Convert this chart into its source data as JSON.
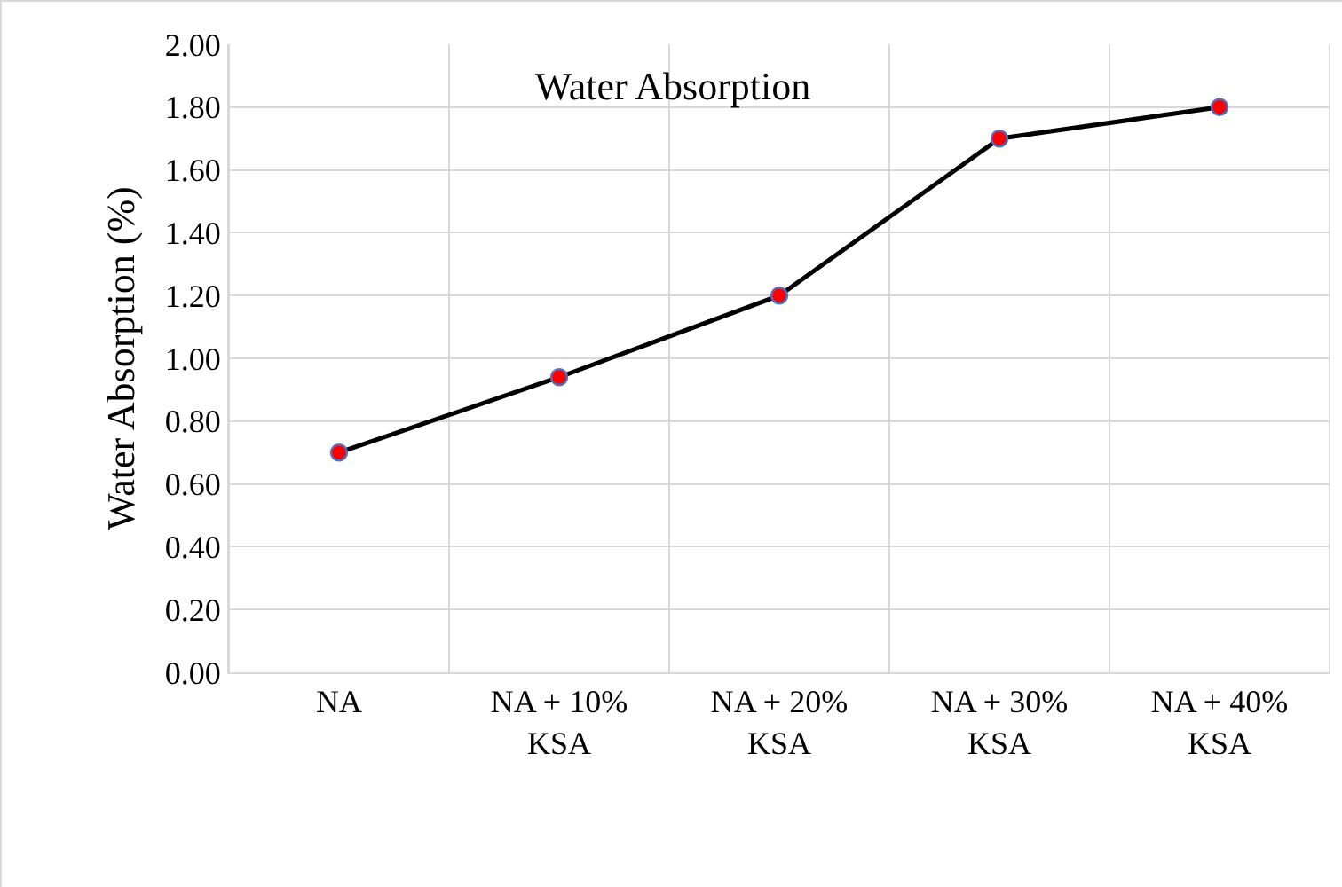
{
  "chart_data": {
    "type": "line",
    "title": "Water Absorption",
    "ylabel": "Water Absorption (%)",
    "categories": [
      "NA",
      "NA + 10%\nKSA",
      "NA + 20%\nKSA",
      "NA + 30%\nKSA",
      "NA + 40%\nKSA"
    ],
    "series": [
      {
        "color": "#000000",
        "values": [
          0.7,
          0.94,
          1.2,
          1.7,
          1.8
        ]
      }
    ],
    "marker": "circle",
    "line_style": "solid",
    "grid": true,
    "ylim": [
      0,
      2
    ],
    "yticks": [
      {
        "value": 0,
        "label": "0.00"
      },
      {
        "value": 0.2,
        "label": "0.20"
      },
      {
        "value": 0.4,
        "label": "0.40"
      },
      {
        "value": 0.6,
        "label": "0.60"
      },
      {
        "value": 0.8,
        "label": "0.80"
      },
      {
        "value": 1,
        "label": "1.00"
      },
      {
        "value": 1.2,
        "label": "1.20"
      },
      {
        "value": 1.4,
        "label": "1.40"
      },
      {
        "value": 1.6,
        "label": "1.60"
      },
      {
        "value": 1.8,
        "label": "1.80"
      },
      {
        "value": 2,
        "label": "2.00"
      }
    ]
  }
}
